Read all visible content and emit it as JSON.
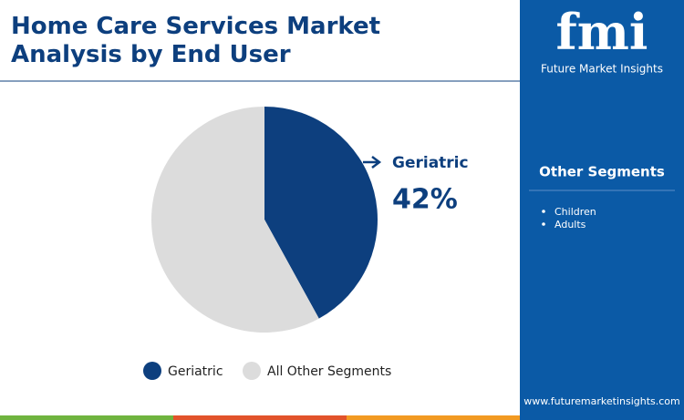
{
  "chart_data": {
    "type": "pie",
    "title": "Home Care Services Market Analysis by End User",
    "categories": [
      "Geriatric",
      "All Other Segments"
    ],
    "values": [
      42,
      58
    ],
    "value_labels": [
      "42%",
      null
    ],
    "colors": [
      "#0d3f7e",
      "#dcdcdc"
    ]
  },
  "logo": {
    "text": "fmi",
    "tagline": "Future Market Insights"
  },
  "sidebar": {
    "heading": "Other Segments",
    "items": [
      "Children",
      "Adults"
    ]
  },
  "footer": {
    "url": "www.futuremarketinsights.com"
  }
}
